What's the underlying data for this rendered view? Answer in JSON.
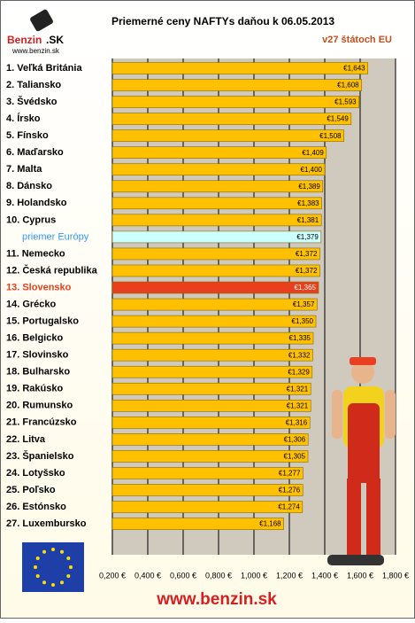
{
  "logo": {
    "brand": "Benzin",
    "suffix": ".SK",
    "url": "www.benzin.sk"
  },
  "footer": "www.benzin.sk",
  "chart_data": {
    "type": "bar",
    "orientation": "horizontal",
    "title": "Priemerné ceny NAFTYs daňou k 06.05.2013",
    "subtitle": "v27 štátoch EU",
    "categories": [
      "1. Veľká Británia",
      "2. Taliansko",
      "3. Švédsko",
      "4. Írsko",
      "5. Fínsko",
      "6. Maďarsko",
      "7. Malta",
      "8. Dánsko",
      "9. Holandsko",
      "10. Cyprus",
      "priemer Európy",
      "11. Nemecko",
      "12. Česká republika",
      "13. Slovensko",
      "14. Grécko",
      "15. Portugalsko",
      "16. Belgicko",
      "17. Slovinsko",
      "18. Bulharsko",
      "19. Rakúsko",
      "20. Rumunsko",
      "21. Francúzsko",
      "22. Litva",
      "23. Španielsko",
      "24. Lotyšsko",
      "25. Poľsko",
      "26. Estónsko",
      "27. Luxembursko"
    ],
    "values": [
      1.643,
      1.608,
      1.593,
      1.549,
      1.508,
      1.409,
      1.4,
      1.389,
      1.383,
      1.381,
      1.379,
      1.372,
      1.372,
      1.365,
      1.357,
      1.35,
      1.335,
      1.332,
      1.329,
      1.321,
      1.321,
      1.316,
      1.306,
      1.305,
      1.277,
      1.276,
      1.274,
      1.168
    ],
    "value_labels": [
      "€1,643",
      "€1,608",
      "€1,593",
      "€1,549",
      "€1,508",
      "€1,409",
      "€1,400",
      "€1,389",
      "€1,383",
      "€1,381",
      "€1,379",
      "€1,372",
      "€1,372",
      "€1,365",
      "€1,357",
      "€1,350",
      "€1,335",
      "€1,332",
      "€1,329",
      "€1,321",
      "€1,321",
      "€1,316",
      "€1,306",
      "€1,305",
      "€1,277",
      "€1,276",
      "€1,274",
      "€1,168"
    ],
    "color": "#FFC000",
    "colors": [
      "#FFC000",
      "#FFC000",
      "#FFC000",
      "#FFC000",
      "#FFC000",
      "#FFC000",
      "#FFC000",
      "#FFC000",
      "#FFC000",
      "#FFC000",
      "#CCFFFF",
      "#FFC000",
      "#FFC000",
      "#E8401C",
      "#FFC000",
      "#FFC000",
      "#FFC000",
      "#FFC000",
      "#FFC000",
      "#FFC000",
      "#FFC000",
      "#FFC000",
      "#FFC000",
      "#FFC000",
      "#FFC000",
      "#FFC000",
      "#FFC000",
      "#FFC000"
    ],
    "label_colors": [
      "#000000",
      "#000000",
      "#000000",
      "#000000",
      "#000000",
      "#000000",
      "#000000",
      "#000000",
      "#000000",
      "#000000",
      "#3399FF",
      "#000000",
      "#000000",
      "#E8401C",
      "#000000",
      "#000000",
      "#000000",
      "#000000",
      "#000000",
      "#000000",
      "#000000",
      "#000000",
      "#000000",
      "#000000",
      "#000000",
      "#000000",
      "#000000",
      "#000000"
    ],
    "xlim": [
      0.2,
      1.8
    ],
    "xticks": [
      {
        "value": 0.2,
        "label": "0,200 €"
      },
      {
        "value": 0.4,
        "label": "0,400 €"
      },
      {
        "value": 0.6,
        "label": "0,600 €"
      },
      {
        "value": 0.8,
        "label": "0,800 €"
      },
      {
        "value": 1.0,
        "label": "1,000 €"
      },
      {
        "value": 1.2,
        "label": "1,200 €"
      },
      {
        "value": 1.4,
        "label": "1,400 €"
      },
      {
        "value": 1.6,
        "label": "1,600 €"
      },
      {
        "value": 1.8,
        "label": "1,800 €"
      }
    ],
    "grid": true
  }
}
